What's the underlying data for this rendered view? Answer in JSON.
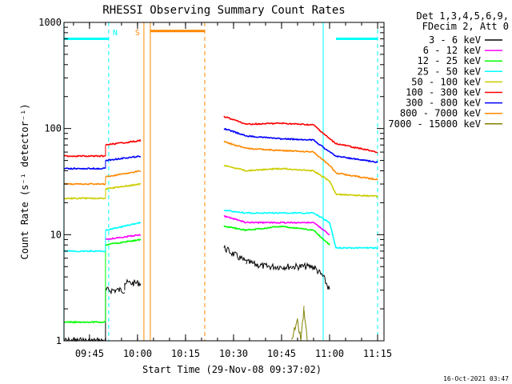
{
  "chart_data": {
    "type": "line",
    "title": "RHESSI Observing Summary Count Rates",
    "xlabel": "Start Time (29-Nov-08 09:37:02)",
    "ylabel": "Count Rate (s⁻¹ detector⁻¹)",
    "ylog": true,
    "ylim": [
      1,
      1000
    ],
    "xlim": [
      "09:37:02",
      "11:17:00"
    ],
    "x_ticks": [
      "09:45",
      "10:00",
      "10:15",
      "10:30",
      "10:45",
      "11:00",
      "11:15"
    ],
    "y_ticks": [
      "1",
      "10",
      "100",
      "1000"
    ],
    "legend_header": [
      "Det 1,3,4,5,6,9,",
      "FDecim 2, Att 0"
    ],
    "legend_position": "right",
    "footer_timestamp": "16-Oct-2021 03:47",
    "colors": {
      "cyan": "#00ffff",
      "orange": "#ff8800",
      "black": "#000000",
      "magenta": "#ff00ff",
      "green": "#00ff00",
      "yellow": "#cccc00",
      "red": "#ff0000",
      "blue": "#0000ff",
      "olive": "#808000"
    },
    "series": [
      {
        "name": "3 - 6 keV",
        "color": "#000000",
        "points": [
          [
            "09:37",
            1
          ],
          [
            "09:50",
            1
          ],
          [
            "09:50",
            3
          ],
          [
            "09:56",
            3
          ],
          [
            "09:56",
            3.5
          ],
          [
            "10:01",
            3.5
          ],
          [
            "10:27",
            7.5
          ],
          [
            "10:34",
            5.5
          ],
          [
            "10:40",
            5
          ],
          [
            "10:48",
            5
          ],
          [
            "10:55",
            5
          ],
          [
            "10:58",
            4
          ],
          [
            "11:00",
            3
          ]
        ]
      },
      {
        "name": "6 - 12 keV",
        "color": "#ff00ff",
        "points": [
          [
            "09:50",
            9
          ],
          [
            "10:01",
            10
          ],
          [
            "10:27",
            15
          ],
          [
            "10:34",
            13
          ],
          [
            "10:45",
            13
          ],
          [
            "10:55",
            13
          ],
          [
            "11:00",
            10
          ]
        ]
      },
      {
        "name": "12 - 25 keV",
        "color": "#00ff00",
        "points": [
          [
            "09:37",
            1.5
          ],
          [
            "09:50",
            1.5
          ],
          [
            "09:50",
            8
          ],
          [
            "10:01",
            9
          ],
          [
            "10:27",
            12
          ],
          [
            "10:34",
            11
          ],
          [
            "10:45",
            12
          ],
          [
            "10:55",
            11
          ],
          [
            "11:00",
            8
          ]
        ]
      },
      {
        "name": "25 - 50 keV",
        "color": "#00ffff",
        "points": [
          [
            "09:37",
            7
          ],
          [
            "09:50",
            7
          ],
          [
            "09:50",
            11
          ],
          [
            "10:01",
            13
          ],
          [
            "10:27",
            17
          ],
          [
            "10:34",
            16
          ],
          [
            "10:45",
            16
          ],
          [
            "10:55",
            16
          ],
          [
            "11:00",
            13
          ],
          [
            "11:02",
            7.5
          ],
          [
            "11:15",
            7.5
          ]
        ]
      },
      {
        "name": "50 - 100 keV",
        "color": "#cccc00",
        "points": [
          [
            "09:37",
            22
          ],
          [
            "09:50",
            22
          ],
          [
            "09:50",
            27
          ],
          [
            "10:01",
            30
          ],
          [
            "10:27",
            45
          ],
          [
            "10:34",
            40
          ],
          [
            "10:45",
            42
          ],
          [
            "10:55",
            40
          ],
          [
            "11:00",
            32
          ],
          [
            "11:02",
            24
          ],
          [
            "11:15",
            23
          ]
        ]
      },
      {
        "name": "100 - 300 keV",
        "color": "#ff0000",
        "points": [
          [
            "09:37",
            55
          ],
          [
            "09:50",
            55
          ],
          [
            "09:50",
            70
          ],
          [
            "10:01",
            77
          ],
          [
            "10:27",
            130
          ],
          [
            "10:34",
            110
          ],
          [
            "10:45",
            112
          ],
          [
            "10:55",
            108
          ],
          [
            "11:00",
            80
          ],
          [
            "11:02",
            72
          ],
          [
            "11:15",
            60
          ]
        ]
      },
      {
        "name": "300 - 800 keV",
        "color": "#0000ff",
        "points": [
          [
            "09:37",
            42
          ],
          [
            "09:50",
            42
          ],
          [
            "09:50",
            50
          ],
          [
            "10:01",
            55
          ],
          [
            "10:27",
            100
          ],
          [
            "10:34",
            85
          ],
          [
            "10:45",
            80
          ],
          [
            "10:55",
            78
          ],
          [
            "11:00",
            60
          ],
          [
            "11:02",
            55
          ],
          [
            "11:15",
            48
          ]
        ]
      },
      {
        "name": "800 - 7000 keV",
        "color": "#ff8800",
        "points": [
          [
            "09:37",
            30
          ],
          [
            "09:50",
            30
          ],
          [
            "09:50",
            35
          ],
          [
            "10:01",
            40
          ],
          [
            "10:27",
            75
          ],
          [
            "10:34",
            65
          ],
          [
            "10:45",
            62
          ],
          [
            "10:55",
            60
          ],
          [
            "11:00",
            45
          ],
          [
            "11:02",
            38
          ],
          [
            "11:15",
            33
          ]
        ]
      },
      {
        "name": "7000 - 15000 keV",
        "color": "#808000",
        "points": [
          [
            "10:48",
            1
          ],
          [
            "10:50",
            1.6
          ],
          [
            "10:51",
            1
          ],
          [
            "10:52",
            2
          ],
          [
            "10:53",
            1
          ]
        ]
      }
    ],
    "attenuator_bands": [
      {
        "color": "#00ffff",
        "level": 700,
        "x": [
          "09:37",
          "09:51"
        ]
      },
      {
        "color": "#ff8800",
        "level": 830,
        "x": [
          "10:04",
          "10:21"
        ]
      },
      {
        "color": "#00ffff",
        "level": 700,
        "x": [
          "11:02",
          "11:15"
        ]
      }
    ],
    "vertical_lines": [
      {
        "color": "#00ffff",
        "style": "solid",
        "x": "09:37"
      },
      {
        "color": "#00ffff",
        "style": "dashed",
        "x": "09:51"
      },
      {
        "color": "#ff8800",
        "style": "solid",
        "x": "10:02"
      },
      {
        "color": "#ff8800",
        "style": "solid",
        "x": "10:04"
      },
      {
        "color": "#ff8800",
        "style": "dashed",
        "x": "10:21"
      },
      {
        "color": "#00ffff",
        "style": "solid",
        "x": "10:58"
      },
      {
        "color": "#00ffff",
        "style": "dashed",
        "x": "11:15"
      }
    ],
    "marker_labels": [
      {
        "text": "N",
        "color": "#00ffff",
        "x": "09:53"
      },
      {
        "text": "S",
        "color": "#ff8800",
        "x": "10:00"
      }
    ]
  }
}
